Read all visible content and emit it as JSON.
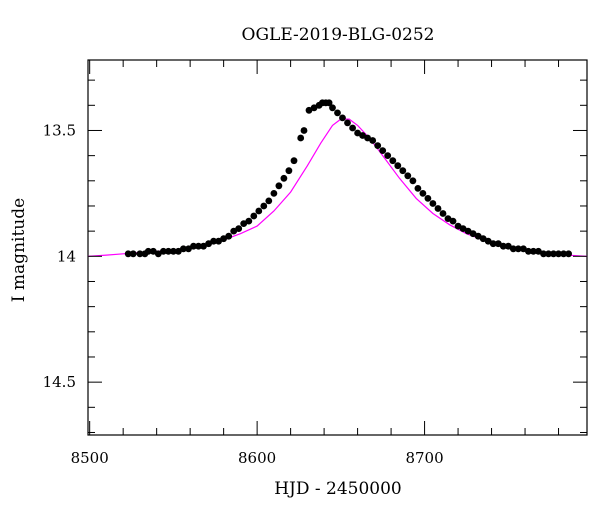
{
  "chart_data": {
    "type": "scatter",
    "title": "OGLE-2019-BLG-0252",
    "xlabel": "HJD - 2450000",
    "ylabel": "I magnitude",
    "xlim": [
      8499,
      8797
    ],
    "ylim": [
      14.71,
      13.22
    ],
    "y_inverted": true,
    "grid": false,
    "x_ticks": [
      8500,
      8600,
      8700
    ],
    "x_tick_labels": [
      "8500",
      "8600",
      "8700"
    ],
    "y_ticks": [
      13.5,
      14,
      14.5
    ],
    "y_tick_labels": [
      "13.5",
      "14",
      "14.5"
    ],
    "colors": {
      "points": "#000000",
      "model": "#ff00ff",
      "frame": "#000000"
    },
    "series": [
      {
        "kind": "points",
        "x": [
          8523,
          8526,
          8530,
          8533,
          8535,
          8538,
          8541,
          8544,
          8547,
          8550,
          8553,
          8556,
          8559,
          8562,
          8565,
          8568,
          8571,
          8574,
          8577,
          8580,
          8583,
          8586,
          8589,
          8592,
          8595,
          8598,
          8601,
          8604,
          8607,
          8610,
          8613,
          8616,
          8619,
          8622,
          8626,
          8628,
          8631,
          8634,
          8637,
          8639,
          8641,
          8643,
          8645,
          8648,
          8651,
          8654,
          8657,
          8660,
          8663,
          8666,
          8669,
          8672,
          8675,
          8678,
          8681,
          8684,
          8687,
          8690,
          8693,
          8696,
          8699,
          8702,
          8705,
          8708,
          8711,
          8714,
          8717,
          8720,
          8723,
          8726,
          8729,
          8732,
          8735,
          8738,
          8741,
          8744,
          8747,
          8750,
          8753,
          8756,
          8759,
          8762,
          8765,
          8768,
          8771,
          8774,
          8777,
          8780,
          8783,
          8786
        ],
        "y": [
          13.99,
          13.99,
          13.99,
          13.99,
          13.98,
          13.98,
          13.99,
          13.98,
          13.98,
          13.98,
          13.98,
          13.97,
          13.97,
          13.96,
          13.96,
          13.96,
          13.95,
          13.94,
          13.94,
          13.93,
          13.92,
          13.9,
          13.89,
          13.87,
          13.86,
          13.84,
          13.82,
          13.8,
          13.78,
          13.75,
          13.72,
          13.69,
          13.66,
          13.62,
          13.53,
          13.5,
          13.42,
          13.41,
          13.4,
          13.39,
          13.39,
          13.39,
          13.41,
          13.43,
          13.45,
          13.47,
          13.49,
          13.51,
          13.52,
          13.53,
          13.54,
          13.56,
          13.58,
          13.6,
          13.62,
          13.64,
          13.66,
          13.68,
          13.7,
          13.73,
          13.75,
          13.77,
          13.79,
          13.81,
          13.83,
          13.85,
          13.86,
          13.88,
          13.89,
          13.9,
          13.91,
          13.92,
          13.93,
          13.94,
          13.95,
          13.95,
          13.96,
          13.96,
          13.97,
          13.97,
          13.97,
          13.98,
          13.98,
          13.98,
          13.99,
          13.99,
          13.99,
          13.99,
          13.99,
          13.99
        ]
      },
      {
        "kind": "model",
        "x": [
          8499,
          8510,
          8520,
          8530,
          8540,
          8550,
          8560,
          8570,
          8580,
          8590,
          8600,
          8610,
          8620,
          8630,
          8638,
          8645,
          8650,
          8655,
          8660,
          8667,
          8675,
          8685,
          8695,
          8705,
          8715,
          8725,
          8735,
          8745,
          8755,
          8765,
          8775,
          8785,
          8797
        ],
        "y": [
          14.0,
          13.995,
          13.99,
          13.985,
          13.98,
          13.975,
          13.965,
          13.955,
          13.935,
          13.91,
          13.88,
          13.82,
          13.745,
          13.64,
          13.55,
          13.48,
          13.455,
          13.455,
          13.48,
          13.53,
          13.6,
          13.69,
          13.77,
          13.83,
          13.875,
          13.91,
          13.935,
          13.955,
          13.97,
          13.98,
          13.99,
          13.995,
          14.0
        ]
      }
    ]
  }
}
